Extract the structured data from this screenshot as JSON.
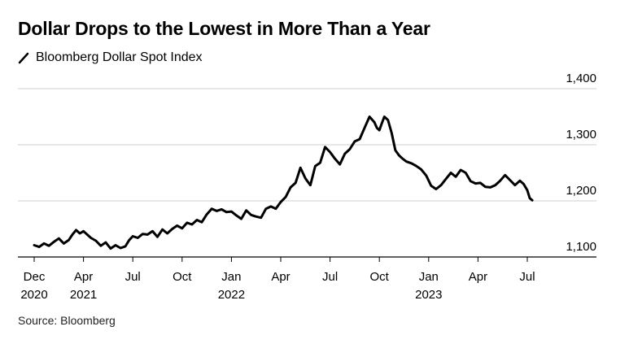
{
  "title": "Dollar Drops to the Lowest in More Than a Year",
  "legend": {
    "label": "Bloomberg Dollar Spot Index",
    "color": "#000000"
  },
  "source": "Source: Bloomberg",
  "chart_data": {
    "type": "line",
    "title": "Dollar Drops to the Lowest in More Than a Year",
    "xlabel": "",
    "ylabel": "",
    "ylim": [
      1100,
      1400
    ],
    "y_ticks": [
      {
        "value": 1400,
        "label": "1,400"
      },
      {
        "value": 1300,
        "label": "1,300"
      },
      {
        "value": 1200,
        "label": "1,200"
      },
      {
        "value": 1100,
        "label": "1,100"
      }
    ],
    "x_ticks": [
      {
        "t": 0,
        "label": "Dec",
        "year": "2020"
      },
      {
        "t": 2,
        "label": "Apr",
        "year": "2021"
      },
      {
        "t": 4,
        "label": "Jul",
        "year": ""
      },
      {
        "t": 6,
        "label": "Oct",
        "year": ""
      },
      {
        "t": 8,
        "label": "Jan",
        "year": "2022"
      },
      {
        "t": 10,
        "label": "Apr",
        "year": ""
      },
      {
        "t": 12,
        "label": "Jul",
        "year": ""
      },
      {
        "t": 14,
        "label": "Oct",
        "year": ""
      },
      {
        "t": 16,
        "label": "Jan",
        "year": "2023"
      },
      {
        "t": 18,
        "label": "Apr",
        "year": ""
      },
      {
        "t": 20,
        "label": "Jul",
        "year": ""
      }
    ],
    "x_range": [
      0,
      21.2
    ],
    "series": [
      {
        "name": "Bloomberg Dollar Spot Index",
        "color": "#000000",
        "x": [
          0,
          0.2,
          0.4,
          0.6,
          0.8,
          1.0,
          1.2,
          1.4,
          1.55,
          1.7,
          1.85,
          2.0,
          2.15,
          2.3,
          2.5,
          2.7,
          2.9,
          3.1,
          3.3,
          3.5,
          3.7,
          3.85,
          4.0,
          4.2,
          4.4,
          4.6,
          4.8,
          5.0,
          5.2,
          5.4,
          5.6,
          5.8,
          6.0,
          6.2,
          6.4,
          6.6,
          6.8,
          7.0,
          7.2,
          7.4,
          7.6,
          7.8,
          8.0,
          8.2,
          8.4,
          8.6,
          8.8,
          9.0,
          9.2,
          9.4,
          9.6,
          9.8,
          10.0,
          10.2,
          10.4,
          10.6,
          10.8,
          11.0,
          11.2,
          11.4,
          11.6,
          11.8,
          12.0,
          12.2,
          12.4,
          12.6,
          12.8,
          13.0,
          13.2,
          13.4,
          13.6,
          13.8,
          13.9,
          14.0,
          14.1,
          14.2,
          14.35,
          14.5,
          14.65,
          14.8,
          14.95,
          15.1,
          15.3,
          15.5,
          15.7,
          15.9,
          16.1,
          16.3,
          16.5,
          16.7,
          16.9,
          17.1,
          17.3,
          17.5,
          17.7,
          17.9,
          18.1,
          18.3,
          18.5,
          18.7,
          18.9,
          19.1,
          19.3,
          19.5,
          19.7,
          19.85,
          20.0,
          20.1,
          20.2
        ],
        "y": [
          1121,
          1118,
          1124,
          1120,
          1127,
          1133,
          1124,
          1130,
          1140,
          1148,
          1142,
          1146,
          1140,
          1134,
          1129,
          1120,
          1126,
          1115,
          1121,
          1116,
          1119,
          1130,
          1137,
          1134,
          1141,
          1140,
          1146,
          1136,
          1149,
          1142,
          1150,
          1156,
          1151,
          1161,
          1158,
          1166,
          1162,
          1176,
          1186,
          1182,
          1185,
          1180,
          1181,
          1174,
          1168,
          1183,
          1175,
          1172,
          1170,
          1186,
          1190,
          1186,
          1198,
          1207,
          1224,
          1232,
          1259,
          1240,
          1228,
          1262,
          1268,
          1296,
          1287,
          1275,
          1265,
          1284,
          1292,
          1306,
          1310,
          1330,
          1350,
          1340,
          1330,
          1326,
          1338,
          1350,
          1344,
          1321,
          1290,
          1281,
          1275,
          1270,
          1267,
          1262,
          1256,
          1245,
          1227,
          1221,
          1228,
          1239,
          1250,
          1243,
          1255,
          1250,
          1235,
          1231,
          1232,
          1225,
          1224,
          1228,
          1236,
          1246,
          1237,
          1228,
          1236,
          1230,
          1219,
          1205,
          1201
        ]
      }
    ]
  }
}
